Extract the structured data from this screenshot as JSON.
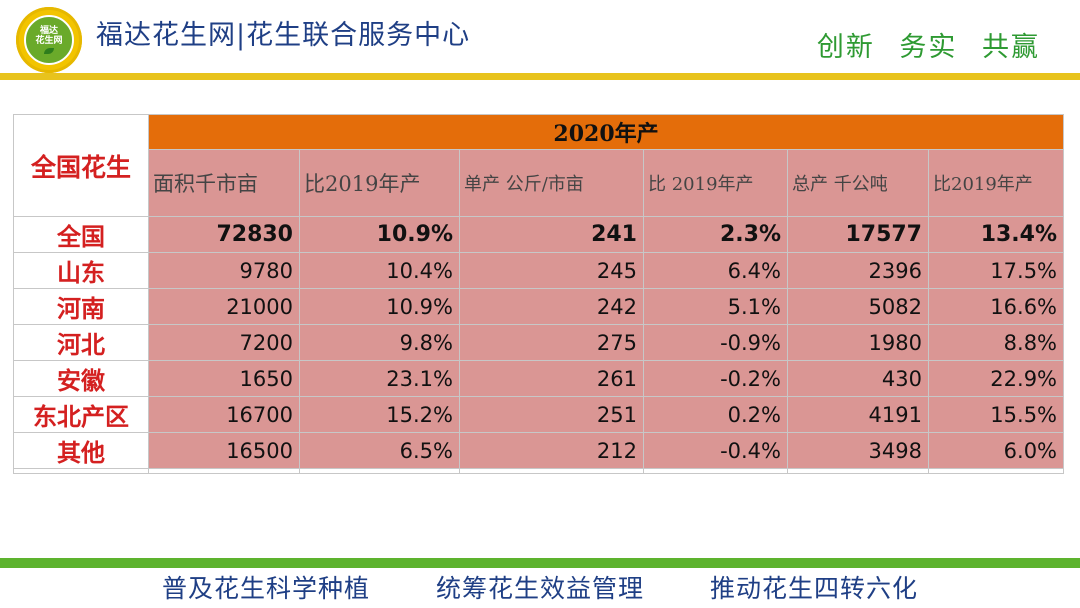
{
  "header": {
    "logo_text": "福达 花生网",
    "title": "福达花生网|花生联合服务中心",
    "slogan": "创新 务实 共赢"
  },
  "table": {
    "corner_label": "全国花生",
    "year_header": "2020年产",
    "columns": [
      "面积千市亩",
      "比2019年产",
      "单产 公斤/市亩",
      "比 2019年产",
      "总产 千公吨",
      "比2019年产"
    ],
    "rows": [
      {
        "region": "全国",
        "cells": [
          "72830",
          "10.9%",
          "241",
          "2.3%",
          "17577",
          "13.4%"
        ]
      },
      {
        "region": "山东",
        "cells": [
          "9780",
          "10.4%",
          "245",
          "6.4%",
          "2396",
          "17.5%"
        ]
      },
      {
        "region": "河南",
        "cells": [
          "21000",
          "10.9%",
          "242",
          "5.1%",
          "5082",
          "16.6%"
        ]
      },
      {
        "region": "河北",
        "cells": [
          "7200",
          "9.8%",
          "275",
          "-0.9%",
          "1980",
          "8.8%"
        ]
      },
      {
        "region": "安徽",
        "cells": [
          "1650",
          "23.1%",
          "261",
          "-0.2%",
          "430",
          "22.9%"
        ]
      },
      {
        "region": "东北产区",
        "cells": [
          "16700",
          "15.2%",
          "251",
          "0.2%",
          "4191",
          "15.5%"
        ]
      },
      {
        "region": "其他",
        "cells": [
          "16500",
          "6.5%",
          "212",
          "-0.4%",
          "3498",
          "6.0%"
        ]
      }
    ]
  },
  "footer": {
    "items": [
      "普及花生科学种植",
      "统筹花生效益管理",
      "推动花生四转六化"
    ]
  },
  "colors": {
    "header_orange": "#e46d0a",
    "cell_pink": "#da9694",
    "region_red": "#d42020",
    "title_blue": "#1f3f85",
    "slogan_green": "#2e9a32",
    "top_bar_yellow": "#e8c31d",
    "bottom_bar_green": "#5db32e"
  }
}
